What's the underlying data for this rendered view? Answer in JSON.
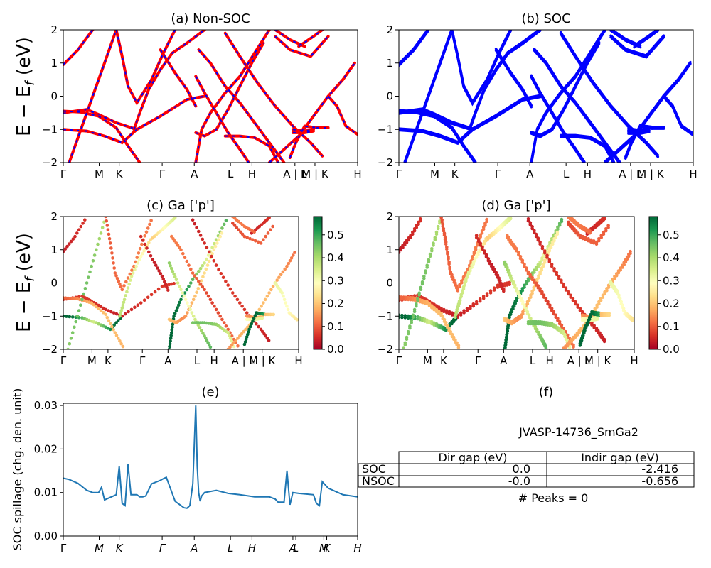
{
  "colors": {
    "nonsoc_line": "#ff0000",
    "nonsoc_dash": "#0000ff",
    "soc_line": "#0000ff",
    "spillage_line": "#1f77b4",
    "colormap": "RdYlGn"
  },
  "kpath_labels": [
    "Γ",
    "M",
    "K",
    "Γ",
    "A",
    "L",
    "H",
    "A | L",
    "M | K",
    "H"
  ],
  "kpath_labels_e": [
    "Γ",
    "M",
    "K",
    "Γ",
    "A",
    "L",
    "H",
    "A",
    "L",
    "M",
    "K",
    "H"
  ],
  "chart_data": [
    {
      "type": "line",
      "title": "(a) Non-SOC",
      "ylabel": "E − E_f (eV)",
      "ylim": [
        -2,
        2
      ],
      "yticks": [
        "−2",
        "−1",
        "0",
        "1",
        "2"
      ],
      "series": [
        {
          "values": [
            [
              0,
              0.95
            ],
            [
              0.05,
              1.4
            ],
            [
              0.1,
              2.0
            ]
          ]
        },
        {
          "values": [
            [
              0,
              -0.5
            ],
            [
              0.08,
              -0.4
            ],
            [
              0.12,
              -0.55
            ],
            [
              0.18,
              -0.8
            ],
            [
              0.25,
              -1.0
            ],
            [
              0.33,
              -0.6
            ],
            [
              0.42,
              -0.1
            ],
            [
              0.48,
              0.0
            ]
          ]
        },
        {
          "values": [
            [
              0,
              -1.0
            ],
            [
              0.08,
              -1.05
            ],
            [
              0.14,
              -1.2
            ],
            [
              0.2,
              -1.4
            ],
            [
              0.25,
              -1.0
            ]
          ]
        },
        {
          "values": [
            [
              0,
              -0.45
            ],
            [
              0.06,
              -0.48
            ],
            [
              0.12,
              -0.6
            ],
            [
              0.18,
              -0.95
            ],
            [
              0.22,
              -1.5
            ],
            [
              0.26,
              -2.0
            ]
          ]
        },
        {
          "values": [
            [
              0.02,
              -2.0
            ],
            [
              0.06,
              -1.0
            ],
            [
              0.1,
              0.0
            ],
            [
              0.14,
              1.0
            ],
            [
              0.18,
              2.0
            ]
          ]
        },
        {
          "values": [
            [
              0.18,
              2.0
            ],
            [
              0.2,
              1.2
            ],
            [
              0.22,
              0.3
            ],
            [
              0.25,
              -0.2
            ],
            [
              0.3,
              0.5
            ],
            [
              0.34,
              1.3
            ],
            [
              0.38,
              2.0
            ]
          ]
        },
        {
          "values": [
            [
              0.24,
              -1.0
            ],
            [
              0.26,
              -0.5
            ],
            [
              0.29,
              0.2
            ],
            [
              0.33,
              0.8
            ],
            [
              0.37,
              1.3
            ],
            [
              0.42,
              1.6
            ],
            [
              0.45,
              1.8
            ],
            [
              0.48,
              2.0
            ]
          ]
        },
        {
          "values": [
            [
              0.45,
              -2.0
            ],
            [
              0.46,
              -1.5
            ],
            [
              0.47,
              -1.0
            ],
            [
              0.5,
              -0.5
            ],
            [
              0.55,
              0.1
            ],
            [
              0.6,
              0.6
            ],
            [
              0.65,
              1.3
            ],
            [
              0.7,
              2.0
            ]
          ]
        },
        {
          "values": [
            [
              0.45,
              -1.1
            ],
            [
              0.48,
              -1.2
            ],
            [
              0.52,
              -1.0
            ],
            [
              0.56,
              -0.4
            ],
            [
              0.6,
              0.3
            ],
            [
              0.64,
              1.0
            ],
            [
              0.68,
              1.6
            ]
          ]
        },
        {
          "values": [
            [
              0.33,
              1.4
            ],
            [
              0.38,
              0.7
            ],
            [
              0.42,
              0.2
            ],
            [
              0.45,
              -0.3
            ]
          ]
        },
        {
          "values": [
            [
              0.46,
              1.4
            ],
            [
              0.5,
              1.0
            ],
            [
              0.55,
              0.3
            ],
            [
              0.6,
              -0.2
            ],
            [
              0.65,
              -0.8
            ],
            [
              0.7,
              -1.4
            ],
            [
              0.75,
              -2.0
            ]
          ]
        },
        {
          "values": [
            [
              0.45,
              0.6
            ],
            [
              0.48,
              0.1
            ],
            [
              0.52,
              -0.5
            ],
            [
              0.56,
              -1.1
            ],
            [
              0.6,
              -1.6
            ],
            [
              0.63,
              -2.0
            ]
          ]
        },
        {
          "values": [
            [
              0.55,
              -1.2
            ],
            [
              0.6,
              -1.2
            ],
            [
              0.65,
              -1.25
            ],
            [
              0.7,
              -1.5
            ],
            [
              0.73,
              -2.0
            ]
          ]
        },
        {
          "values": [
            [
              0.7,
              -2.0
            ],
            [
              0.75,
              -1.6
            ],
            [
              0.8,
              -1.2
            ],
            [
              0.85,
              -0.6
            ],
            [
              0.9,
              0.0
            ],
            [
              0.95,
              0.5
            ],
            [
              0.99,
              1.0
            ]
          ]
        },
        {
          "values": [
            [
              0.55,
              1.9
            ],
            [
              0.6,
              1.2
            ],
            [
              0.66,
              0.4
            ],
            [
              0.72,
              -0.3
            ],
            [
              0.78,
              -0.9
            ],
            [
              0.84,
              -1.4
            ],
            [
              0.88,
              -1.8
            ]
          ]
        },
        {
          "values": [
            [
              0.8,
              1.5
            ],
            [
              0.85,
              1.8
            ],
            [
              0.88,
              2.0
            ]
          ]
        },
        {
          "values": [
            [
              0.72,
              1.8
            ],
            [
              0.77,
              1.4
            ],
            [
              0.84,
              1.2
            ],
            [
              0.9,
              1.8
            ]
          ]
        },
        {
          "values": [
            [
              0.72,
              2.0
            ],
            [
              0.77,
              1.7
            ],
            [
              0.82,
              1.5
            ]
          ]
        },
        {
          "values": [
            [
              0.78,
              -1.0
            ],
            [
              0.82,
              -1.05
            ],
            [
              0.85,
              -1.0
            ]
          ]
        },
        {
          "values": [
            [
              0.78,
              -1.1
            ],
            [
              0.82,
              -1.1
            ],
            [
              0.85,
              -1.05
            ]
          ]
        },
        {
          "values": [
            [
              0.77,
              -1.85
            ],
            [
              0.79,
              -1.4
            ],
            [
              0.82,
              -0.9
            ],
            [
              0.86,
              -0.95
            ]
          ]
        },
        {
          "values": [
            [
              0.86,
              -0.95
            ],
            [
              0.9,
              -0.95
            ]
          ]
        },
        {
          "values": [
            [
              0.9,
              0.0
            ],
            [
              0.93,
              -0.3
            ],
            [
              0.96,
              -0.9
            ],
            [
              1.0,
              -1.15
            ]
          ]
        }
      ]
    },
    {
      "type": "line",
      "title": "(b) SOC",
      "ylim": [
        -2,
        2
      ],
      "yticks": [
        "−2",
        "−1",
        "0",
        "1",
        "2"
      ]
    },
    {
      "type": "scatter",
      "title": "(c)  Ga ['p']",
      "ylabel": "E − E_f (eV)",
      "ylim": [
        -2,
        2
      ],
      "yticks": [
        "−2",
        "−1",
        "0",
        "1",
        "2"
      ],
      "colorbar": {
        "range": [
          0.0,
          0.58
        ],
        "ticks": [
          "0.0",
          "0.1",
          "0.2",
          "0.3",
          "0.4",
          "0.5"
        ]
      }
    },
    {
      "type": "scatter",
      "title": "(d) Ga ['p']",
      "ylim": [
        -2,
        2
      ],
      "yticks": [
        "−2",
        "−1",
        "0",
        "1",
        "2"
      ],
      "colorbar": {
        "range": [
          0.0,
          0.58
        ],
        "ticks": [
          "0.0",
          "0.1",
          "0.2",
          "0.3",
          "0.4",
          "0.5"
        ]
      }
    },
    {
      "type": "line",
      "title": "(e)",
      "ylabel": "SOC spillage (chg. den. unit)",
      "ylim": [
        0.0,
        0.0305
      ],
      "yticks": [
        "0.00",
        "0.01",
        "0.02",
        "0.03"
      ],
      "series": [
        {
          "x": [
            0,
            0.02,
            0.05,
            0.08,
            0.1,
            0.12,
            0.13,
            0.14,
            0.18,
            0.19,
            0.2,
            0.21,
            0.22,
            0.23,
            0.25,
            0.26,
            0.27,
            0.28,
            0.3,
            0.33,
            0.34,
            0.35,
            0.38,
            0.41,
            0.42,
            0.43,
            0.44,
            0.45,
            0.455,
            0.46,
            0.465,
            0.47,
            0.48,
            0.52,
            0.56,
            0.6,
            0.65,
            0.7,
            0.72,
            0.73,
            0.75,
            0.76,
            0.77,
            0.78,
            0.8,
            0.85,
            0.86,
            0.87,
            0.88,
            0.9,
            0.95,
            1.0
          ],
          "y": [
            0.0133,
            0.013,
            0.0121,
            0.0105,
            0.01,
            0.01,
            0.0112,
            0.0083,
            0.0095,
            0.016,
            0.0075,
            0.007,
            0.0165,
            0.0095,
            0.0095,
            0.009,
            0.009,
            0.0092,
            0.012,
            0.0128,
            0.0132,
            0.0135,
            0.008,
            0.0065,
            0.0064,
            0.007,
            0.012,
            0.03,
            0.016,
            0.01,
            0.008,
            0.0092,
            0.01,
            0.0105,
            0.0098,
            0.0095,
            0.009,
            0.009,
            0.0085,
            0.0078,
            0.0078,
            0.015,
            0.0072,
            0.01,
            0.0098,
            0.0095,
            0.0075,
            0.007,
            0.0125,
            0.011,
            0.0095,
            0.009
          ]
        }
      ]
    }
  ],
  "panel_f": {
    "title": "(f)",
    "material": "JVASP-14736_SmGa2",
    "table": {
      "header": [
        "",
        "Dir gap (eV)",
        "Indir gap (eV)"
      ],
      "rows": [
        [
          "SOC",
          "0.0",
          "-2.416"
        ],
        [
          "NSOC",
          "-0.0",
          "-0.656"
        ]
      ]
    },
    "peaks": "# Peaks = 0"
  }
}
